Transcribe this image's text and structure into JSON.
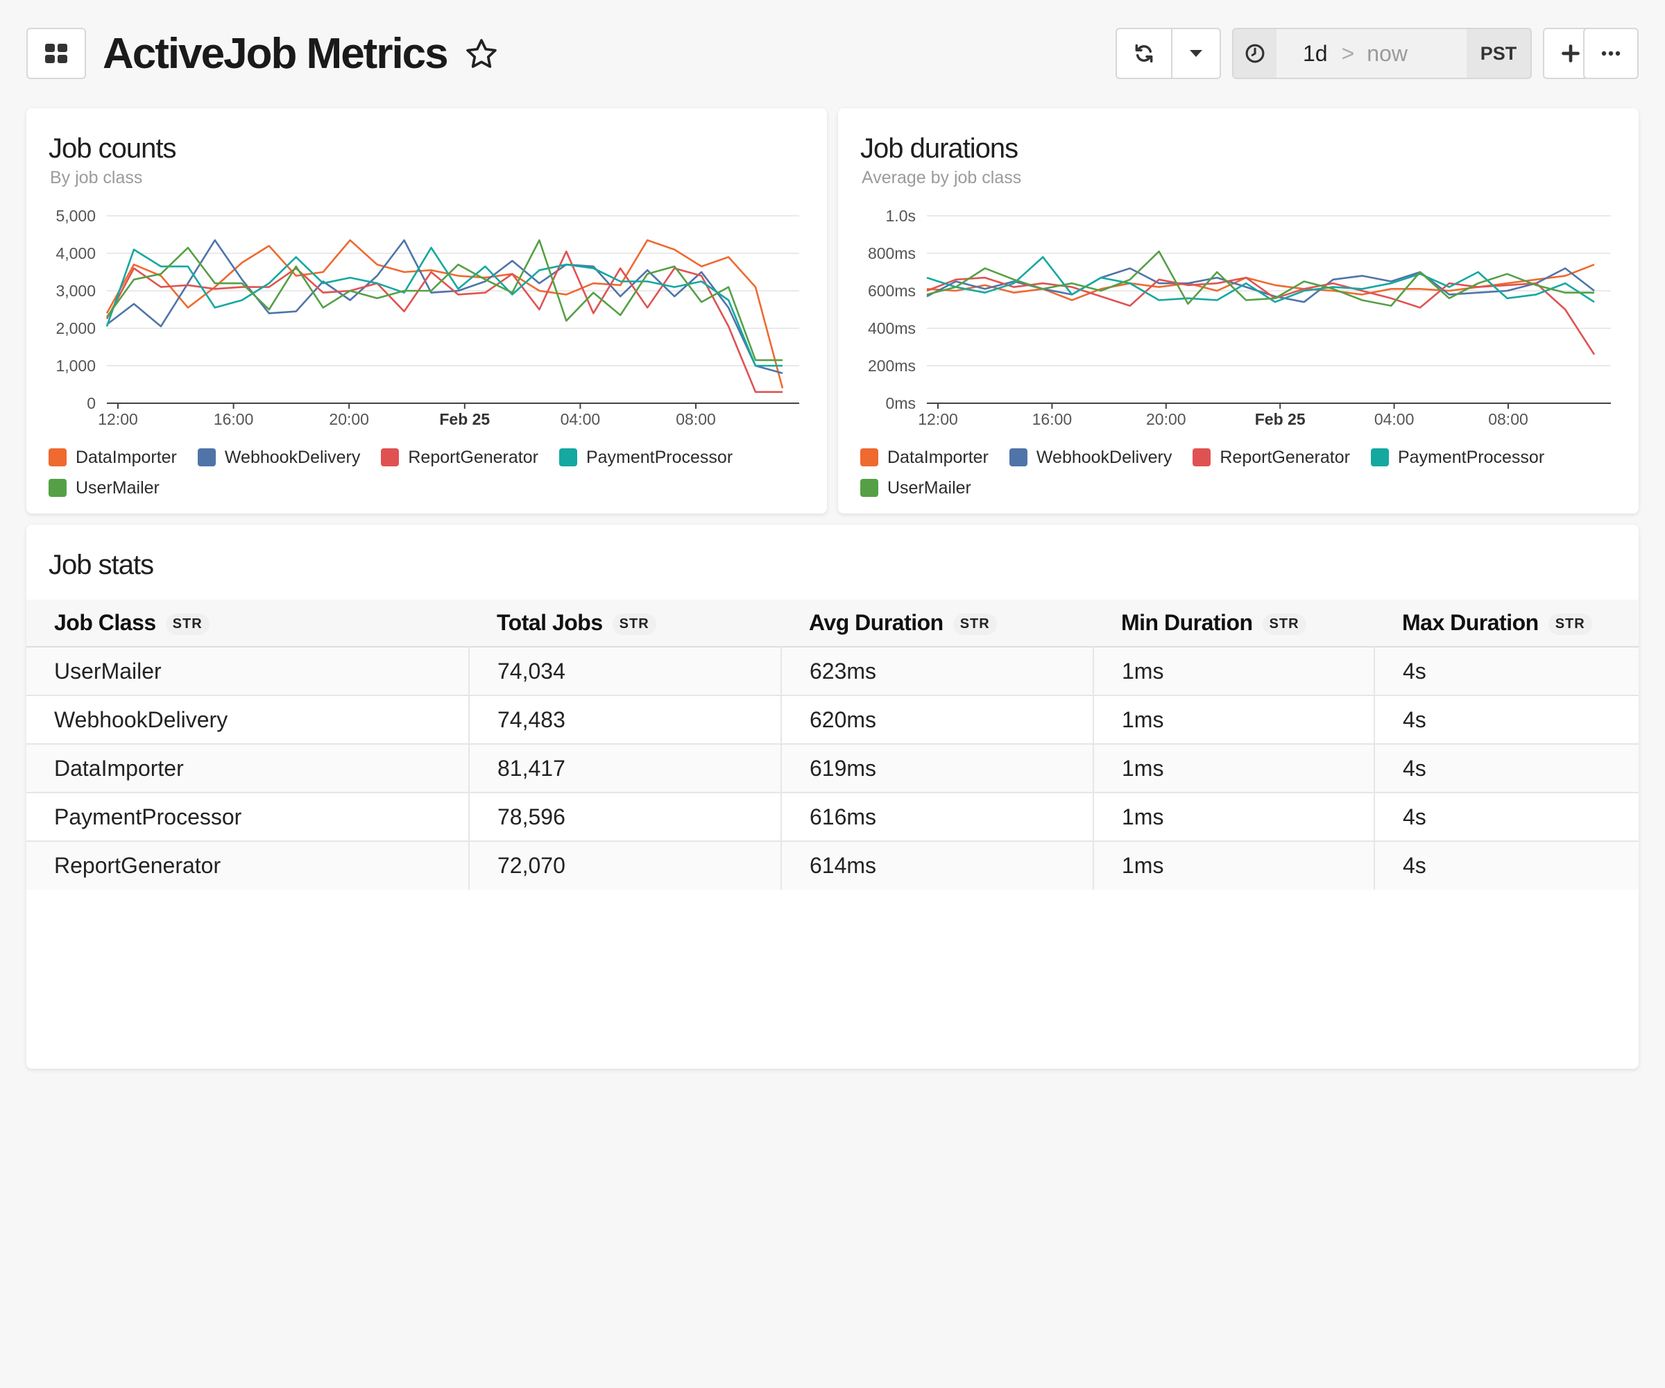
{
  "header": {
    "title": "ActiveJob Metrics",
    "time_range": {
      "start": "1d",
      "separator": ">",
      "end": "now",
      "timezone": "PST"
    }
  },
  "colors": {
    "DataImporter": "#ee6a2f",
    "WebhookDelivery": "#4f74a8",
    "ReportGenerator": "#e05252",
    "PaymentProcessor": "#14a8a0",
    "UserMailer": "#55a046"
  },
  "panels": {
    "counts": {
      "title": "Job counts",
      "subtitle": "By job class"
    },
    "durations": {
      "title": "Job durations",
      "subtitle": "Average by job class"
    },
    "stats": {
      "title": "Job stats"
    }
  },
  "chart_data": [
    {
      "type": "line",
      "title": "Job counts",
      "subtitle": "By job class",
      "ylim": [
        0,
        5000
      ],
      "y_ticks": [
        "0",
        "1,000",
        "2,000",
        "3,000",
        "4,000",
        "5,000"
      ],
      "x_ticks": [
        "12:00",
        "16:00",
        "20:00",
        "Feb 25",
        "04:00",
        "08:00"
      ],
      "x_ticks_bold": [
        false,
        false,
        false,
        true,
        false,
        false
      ],
      "grid": true,
      "legend_position": "bottom",
      "series": [
        {
          "name": "DataImporter",
          "values": [
            2400,
            3700,
            3400,
            2550,
            3100,
            3750,
            4200,
            3400,
            3500,
            4350,
            3700,
            3500,
            3550,
            3400,
            3350,
            3450,
            3000,
            2900,
            3200,
            3150,
            4350,
            4100,
            3650,
            3900,
            3100,
            400
          ]
        },
        {
          "name": "WebhookDelivery",
          "values": [
            2100,
            2650,
            2050,
            3200,
            4350,
            3300,
            2400,
            2450,
            3250,
            2750,
            3400,
            4350,
            2950,
            3000,
            3250,
            3800,
            3200,
            3700,
            3650,
            2850,
            3550,
            2850,
            3500,
            2550,
            1000,
            800
          ]
        },
        {
          "name": "ReportGenerator",
          "values": [
            2250,
            3600,
            3100,
            3150,
            3050,
            3100,
            3100,
            3600,
            2950,
            3000,
            3200,
            2450,
            3500,
            2900,
            2950,
            3450,
            2500,
            4050,
            2400,
            3600,
            2550,
            3600,
            3400,
            2050,
            300,
            300
          ]
        },
        {
          "name": "PaymentProcessor",
          "values": [
            2050,
            4100,
            3650,
            3650,
            2550,
            2750,
            3200,
            3900,
            3200,
            3350,
            3200,
            2950,
            4150,
            3050,
            3650,
            2900,
            3550,
            3700,
            3600,
            3250,
            3250,
            3100,
            3250,
            2750,
            1000,
            1000
          ]
        },
        {
          "name": "UserMailer",
          "values": [
            2300,
            3300,
            3450,
            4150,
            3200,
            3200,
            2500,
            3650,
            2550,
            3000,
            2800,
            3000,
            3000,
            3700,
            3300,
            2950,
            4350,
            2200,
            2950,
            2350,
            3450,
            3650,
            2700,
            3100,
            1150,
            1150
          ]
        }
      ]
    },
    {
      "type": "line",
      "title": "Job durations",
      "subtitle": "Average by job class",
      "ylim": [
        0,
        1000
      ],
      "y_ticks": [
        "0ms",
        "200ms",
        "400ms",
        "600ms",
        "800ms",
        "1.0s"
      ],
      "x_ticks": [
        "12:00",
        "16:00",
        "20:00",
        "Feb 25",
        "04:00",
        "08:00"
      ],
      "x_ticks_bold": [
        false,
        false,
        false,
        true,
        false,
        false
      ],
      "grid": true,
      "legend_position": "bottom",
      "series": [
        {
          "name": "DataImporter",
          "values": [
            610,
            600,
            630,
            590,
            610,
            550,
            610,
            640,
            620,
            640,
            600,
            670,
            630,
            610,
            600,
            580,
            610,
            610,
            600,
            620,
            640,
            660,
            680,
            740
          ]
        },
        {
          "name": "WebhookDelivery",
          "values": [
            570,
            650,
            610,
            650,
            610,
            580,
            670,
            720,
            640,
            640,
            670,
            620,
            570,
            540,
            660,
            680,
            650,
            700,
            580,
            590,
            600,
            640,
            720,
            600
          ]
        },
        {
          "name": "ReportGenerator",
          "values": [
            600,
            660,
            670,
            620,
            640,
            620,
            570,
            520,
            660,
            630,
            640,
            670,
            560,
            610,
            640,
            600,
            560,
            510,
            640,
            620,
            630,
            640,
            500,
            260
          ]
        },
        {
          "name": "PaymentProcessor",
          "values": [
            670,
            620,
            590,
            640,
            780,
            580,
            670,
            640,
            550,
            560,
            550,
            640,
            540,
            600,
            620,
            610,
            640,
            690,
            620,
            700,
            560,
            580,
            640,
            540
          ]
        },
        {
          "name": "UserMailer",
          "values": [
            580,
            620,
            720,
            660,
            610,
            640,
            600,
            660,
            810,
            530,
            700,
            550,
            560,
            650,
            610,
            550,
            520,
            700,
            560,
            640,
            690,
            630,
            590,
            590
          ]
        }
      ]
    }
  ],
  "table": {
    "columns": [
      {
        "label": "Job Class",
        "badge": "STR"
      },
      {
        "label": "Total Jobs",
        "badge": "STR"
      },
      {
        "label": "Avg Duration",
        "badge": "STR"
      },
      {
        "label": "Min Duration",
        "badge": "STR"
      },
      {
        "label": "Max Duration",
        "badge": "STR"
      }
    ],
    "rows": [
      [
        "UserMailer",
        "74,034",
        "623ms",
        "1ms",
        "4s"
      ],
      [
        "WebhookDelivery",
        "74,483",
        "620ms",
        "1ms",
        "4s"
      ],
      [
        "DataImporter",
        "81,417",
        "619ms",
        "1ms",
        "4s"
      ],
      [
        "PaymentProcessor",
        "78,596",
        "616ms",
        "1ms",
        "4s"
      ],
      [
        "ReportGenerator",
        "72,070",
        "614ms",
        "1ms",
        "4s"
      ]
    ]
  }
}
